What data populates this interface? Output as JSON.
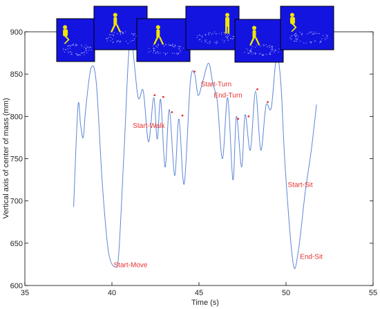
{
  "chart_data": {
    "type": "line",
    "title": "",
    "xlabel": "Time (s)",
    "ylabel": "Vertical axis of center of mass  (mm)",
    "xlim": [
      35,
      55
    ],
    "ylim": [
      600,
      900
    ],
    "xticks": [
      "35",
      "40",
      "45",
      "50",
      "55"
    ],
    "yticks": [
      "600",
      "650",
      "700",
      "750",
      "800",
      "850",
      "900"
    ],
    "grid": false,
    "line_color": "#5b86d6",
    "annotation_color": "#e8322f",
    "series": [
      {
        "x": [
          37.8,
          38.05,
          38.2,
          38.35,
          38.5,
          38.8,
          39.1,
          39.45,
          39.8,
          40.2,
          40.4,
          40.7,
          41.05,
          41.5,
          41.8,
          42.1,
          42.4,
          42.6,
          42.8,
          43.05,
          43.3,
          43.6,
          43.85,
          44.15,
          44.5,
          44.75,
          44.95,
          45.2,
          45.55,
          45.8,
          46.05,
          46.35,
          46.65,
          46.95,
          47.15,
          47.45,
          47.65,
          47.95,
          48.25,
          48.55,
          48.85,
          49.15,
          49.45,
          49.7,
          49.95,
          50.4,
          50.7,
          51.1,
          51.45,
          51.75
        ],
        "y": [
          693,
          812,
          790,
          775,
          810,
          857,
          840,
          720,
          640,
          622,
          640,
          760,
          890,
          823,
          830,
          770,
          822,
          773,
          820,
          740,
          808,
          730,
          797,
          720,
          840,
          850,
          825,
          840,
          863,
          838,
          818,
          750,
          822,
          725,
          800,
          740,
          802,
          760,
          830,
          760,
          813,
          810,
          870,
          840,
          740,
          627,
          640,
          710,
          760,
          814
        ]
      }
    ],
    "markers": {
      "x": [
        42.45,
        42.95,
        43.45,
        44.05,
        44.75,
        47.25,
        47.85,
        48.35,
        48.95
      ],
      "y": [
        825,
        823,
        805,
        801,
        853,
        797,
        800,
        832,
        817
      ]
    },
    "annotations": [
      {
        "text": "Start-Move",
        "x": 40.1,
        "y": 624
      },
      {
        "text": "Start-Walk",
        "x": 41.2,
        "y": 789
      },
      {
        "text": "Start-Turn",
        "x": 45.1,
        "y": 838
      },
      {
        "text": "End-Turn",
        "x": 45.85,
        "y": 825
      },
      {
        "text": "Start-Sit",
        "x": 50.1,
        "y": 719
      },
      {
        "text": "End-Sit",
        "x": 50.8,
        "y": 634
      }
    ]
  },
  "thumbnails": [
    {
      "name": "frame-1",
      "pose": "crouch"
    },
    {
      "name": "frame-2",
      "pose": "walk"
    },
    {
      "name": "frame-3",
      "pose": "walk"
    },
    {
      "name": "frame-4",
      "pose": "stand"
    },
    {
      "name": "frame-5",
      "pose": "walk"
    },
    {
      "name": "frame-6",
      "pose": "crouch"
    }
  ],
  "thumbnail_colors": {
    "background": "#1414e0",
    "figure": "#f2e600",
    "points": "#cfd6ff"
  }
}
